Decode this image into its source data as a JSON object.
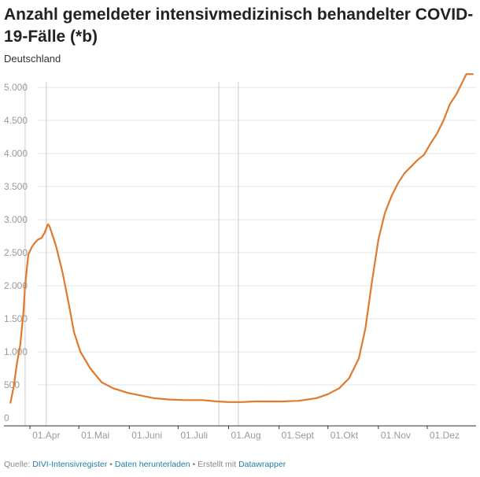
{
  "title": "Anzahl gemeldeter intensivmedizinisch behandelter COVID-19-Fälle (*b)",
  "subtitle": "Deutschland",
  "footer": {
    "source_label": "Quelle:",
    "source_link": "DIVI-Intensivregister",
    "sep1": "•",
    "download_link": "Daten herunterladen",
    "sep2": "•",
    "created_with": "Erstellt mit",
    "datawrapper_link": "Datawrapper"
  },
  "colors": {
    "line": "#e07a2e",
    "grid": "#e3e3e3",
    "vline": "#cccccc",
    "axis": "#333333",
    "tick": "#999999"
  },
  "chart_data": {
    "type": "line",
    "title": "Anzahl gemeldeter intensivmedizinisch behandelter COVID-19-Fälle (*b)",
    "subtitle": "Deutschland",
    "xlabel": "",
    "ylabel": "",
    "ylim": [
      0,
      5000
    ],
    "y_ticks": [
      0,
      500,
      1000,
      1500,
      2000,
      2500,
      3000,
      3500,
      4000,
      4500,
      5000
    ],
    "y_tick_labels": [
      "0",
      "500",
      "1.000",
      "1.500",
      "2.000",
      "2.500",
      "3.000",
      "3.500",
      "4.000",
      "4.500",
      "5.000"
    ],
    "xlim": [
      "2020-03-16",
      "2020-12-31"
    ],
    "x_ticks": [
      "2020-04-01",
      "2020-05-01",
      "2020-06-01",
      "2020-07-01",
      "2020-08-01",
      "2020-09-01",
      "2020-10-01",
      "2020-11-01",
      "2020-12-01"
    ],
    "x_tick_labels": [
      "01.Apr",
      "01.Mai",
      "01.Juni",
      "01.Juli",
      "01.Aug",
      "01.Sept",
      "01.Okt",
      "01.Nov",
      "01.Dez"
    ],
    "reference_lines": [
      "2020-03-29",
      "2020-04-11",
      "2020-07-26",
      "2020-08-07"
    ],
    "grid": true,
    "series": [
      {
        "x": [
          "2020-03-20",
          "2020-03-22",
          "2020-03-24",
          "2020-03-26",
          "2020-03-28",
          "2020-03-29",
          "2020-03-31",
          "2020-04-02",
          "2020-04-04",
          "2020-04-06",
          "2020-04-08",
          "2020-04-10",
          "2020-04-12",
          "2020-04-13",
          "2020-04-15",
          "2020-04-17",
          "2020-04-21",
          "2020-04-25",
          "2020-04-28",
          "2020-05-02",
          "2020-05-08",
          "2020-05-15",
          "2020-05-22",
          "2020-05-31",
          "2020-06-08",
          "2020-06-16",
          "2020-06-25",
          "2020-07-05",
          "2020-07-16",
          "2020-07-25",
          "2020-08-01",
          "2020-08-09",
          "2020-08-17",
          "2020-08-25",
          "2020-09-03",
          "2020-09-13",
          "2020-09-24",
          "2020-10-01",
          "2020-10-08",
          "2020-10-14",
          "2020-10-20",
          "2020-10-24",
          "2020-10-28",
          "2020-11-01",
          "2020-11-05",
          "2020-11-09",
          "2020-11-13",
          "2020-11-17",
          "2020-11-21",
          "2020-11-25",
          "2020-11-29",
          "2020-12-03",
          "2020-12-07",
          "2020-12-11",
          "2020-12-15",
          "2020-12-19",
          "2020-12-22",
          "2020-12-25",
          "2020-12-28",
          "2020-12-29"
        ],
        "values": [
          230,
          470,
          830,
          1100,
          1600,
          2000,
          2470,
          2580,
          2650,
          2700,
          2720,
          2800,
          2930,
          2900,
          2750,
          2600,
          2200,
          1700,
          1300,
          1000,
          750,
          540,
          450,
          380,
          340,
          300,
          280,
          270,
          270,
          250,
          240,
          240,
          250,
          250,
          250,
          260,
          300,
          360,
          450,
          600,
          900,
          1350,
          2050,
          2700,
          3100,
          3350,
          3550,
          3700,
          3800,
          3900,
          3980,
          4150,
          4300,
          4500,
          4750,
          4900,
          5050,
          5200,
          5200,
          5200
        ]
      }
    ]
  }
}
